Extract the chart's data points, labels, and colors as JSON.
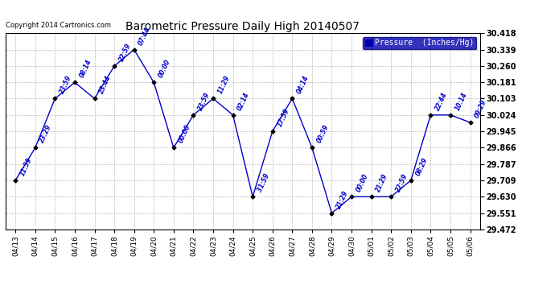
{
  "title": "Barometric Pressure Daily High 20140507",
  "copyright": "Copyright 2014 Cartronics.com",
  "legend_label": "Pressure  (Inches/Hg)",
  "background_color": "#ffffff",
  "plot_bg_color": "#ffffff",
  "grid_color": "#bbbbbb",
  "line_color": "#0000cc",
  "marker_color": "#000000",
  "dates": [
    "04/13",
    "04/14",
    "04/15",
    "04/16",
    "04/17",
    "04/18",
    "04/19",
    "04/20",
    "04/21",
    "04/22",
    "04/23",
    "04/24",
    "04/25",
    "04/26",
    "04/27",
    "04/28",
    "04/29",
    "04/30",
    "05/01",
    "05/02",
    "05/03",
    "05/04",
    "05/05",
    "05/06"
  ],
  "values": [
    29.709,
    29.866,
    30.103,
    30.181,
    30.103,
    30.26,
    30.339,
    30.181,
    29.866,
    30.024,
    30.103,
    30.024,
    29.63,
    29.945,
    30.103,
    29.866,
    29.551,
    29.63,
    29.63,
    29.63,
    29.709,
    30.024,
    30.024,
    29.988
  ],
  "annotations": [
    "11:59",
    "23:29",
    "23:59",
    "08:14",
    "23:44",
    "22:59",
    "07:44",
    "00:00",
    "00:00",
    "23:59",
    "11:29",
    "02:14",
    "31:59",
    "17:59",
    "04:14",
    "00:59",
    "21:29",
    "00:00",
    "21:29",
    "22:59",
    "08:29",
    "22:44",
    "10:14",
    "09:29"
  ],
  "ylim_min": 29.472,
  "ylim_max": 30.418,
  "yticks": [
    29.472,
    29.551,
    29.63,
    29.709,
    29.787,
    29.866,
    29.945,
    30.024,
    30.103,
    30.181,
    30.26,
    30.339,
    30.418
  ],
  "figwidth": 6.9,
  "figheight": 3.75,
  "dpi": 100
}
